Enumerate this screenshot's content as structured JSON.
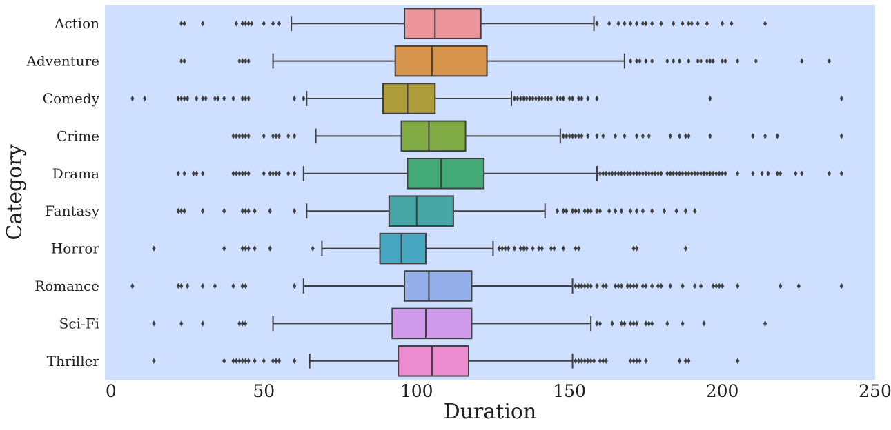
{
  "chart_data": {
    "type": "boxplot",
    "orientation": "horizontal",
    "xlabel": "Duration",
    "ylabel": "Category",
    "xlim": [
      -2,
      250
    ],
    "xticks": [
      0,
      50,
      100,
      150,
      200,
      250
    ],
    "grid": false,
    "plot_background": "#cfdfff",
    "box_edge_color": "#3f3f3f",
    "categories": [
      "Action",
      "Adventure",
      "Comedy",
      "Crime",
      "Drama",
      "Fantasy",
      "Horror",
      "Romance",
      "Sci-Fi",
      "Thriller"
    ],
    "boxes": [
      {
        "category": "Action",
        "color": "#eb949b",
        "whisker_low": 59,
        "q1": 96,
        "median": 106,
        "q3": 121,
        "whisker_high": 158,
        "outliers": [
          23,
          24,
          30,
          41,
          43,
          44,
          45,
          46,
          50,
          53,
          55,
          159,
          163,
          166,
          168,
          170,
          172,
          174,
          175,
          177,
          180,
          184,
          187,
          189,
          190,
          192,
          195,
          200,
          203,
          214
        ]
      },
      {
        "category": "Adventure",
        "color": "#d7944d",
        "whisker_low": 53,
        "q1": 93,
        "median": 105,
        "q3": 123,
        "whisker_high": 168,
        "outliers": [
          23,
          24,
          42,
          43,
          44,
          45,
          170,
          172,
          173,
          175,
          177,
          182,
          184,
          186,
          189,
          192,
          193,
          195,
          196,
          197,
          200,
          201,
          205,
          211,
          226,
          235
        ]
      },
      {
        "category": "Comedy",
        "color": "#ac9c3c",
        "whisker_low": 64,
        "q1": 89,
        "median": 97,
        "q3": 106,
        "whisker_high": 131,
        "outliers": [
          7,
          11,
          22,
          23,
          24,
          25,
          28,
          30,
          31,
          34,
          35,
          37,
          40,
          43,
          44,
          45,
          60,
          63,
          132,
          133,
          134,
          135,
          136,
          137,
          138,
          139,
          140,
          141,
          142,
          143,
          144,
          146,
          147,
          148,
          150,
          151,
          153,
          154,
          156,
          159,
          196,
          239
        ]
      },
      {
        "category": "Crime",
        "color": "#80aa44",
        "whisker_low": 67,
        "q1": 95,
        "median": 104,
        "q3": 116,
        "whisker_high": 147,
        "outliers": [
          40,
          41,
          42,
          43,
          44,
          45,
          50,
          53,
          54,
          55,
          58,
          60,
          148,
          149,
          150,
          151,
          152,
          153,
          154,
          156,
          159,
          161,
          165,
          168,
          172,
          174,
          176,
          183,
          186,
          188,
          189,
          196,
          210,
          214,
          218,
          239
        ]
      },
      {
        "category": "Drama",
        "color": "#44aa78",
        "whisker_low": 63,
        "q1": 97,
        "median": 108,
        "q3": 122,
        "whisker_high": 159,
        "outliers": [
          22,
          24,
          27,
          28,
          30,
          40,
          41,
          42,
          43,
          44,
          45,
          50,
          52,
          53,
          54,
          55,
          58,
          60,
          160,
          161,
          162,
          163,
          164,
          165,
          166,
          167,
          168,
          169,
          170,
          171,
          172,
          173,
          174,
          175,
          176,
          177,
          178,
          179,
          180,
          182,
          183,
          184,
          185,
          186,
          187,
          188,
          189,
          190,
          191,
          192,
          193,
          194,
          195,
          196,
          197,
          198,
          199,
          200,
          201,
          205,
          210,
          213,
          215,
          218,
          219,
          224,
          226,
          235,
          239
        ]
      },
      {
        "category": "Fantasy",
        "color": "#47a6a6",
        "whisker_low": 64,
        "q1": 91,
        "median": 100,
        "q3": 112,
        "whisker_high": 142,
        "outliers": [
          22,
          23,
          24,
          30,
          37,
          43,
          44,
          45,
          47,
          52,
          60,
          146,
          148,
          149,
          151,
          152,
          153,
          155,
          156,
          157,
          159,
          160,
          163,
          165,
          167,
          170,
          172,
          174,
          177,
          181,
          185,
          188,
          191
        ]
      },
      {
        "category": "Horror",
        "color": "#48a8c4",
        "whisker_low": 69,
        "q1": 88,
        "median": 95,
        "q3": 103,
        "whisker_high": 125,
        "outliers": [
          14,
          37,
          43,
          44,
          45,
          47,
          52,
          66,
          127,
          128,
          129,
          130,
          132,
          134,
          135,
          136,
          138,
          140,
          141,
          144,
          145,
          148,
          152,
          153,
          171,
          172,
          188
        ]
      },
      {
        "category": "Romance",
        "color": "#94aeea",
        "whisker_low": 63,
        "q1": 96,
        "median": 104,
        "q3": 118,
        "whisker_high": 151,
        "outliers": [
          7,
          22,
          23,
          25,
          30,
          34,
          40,
          43,
          44,
          60,
          152,
          153,
          154,
          155,
          156,
          157,
          159,
          161,
          162,
          165,
          166,
          167,
          169,
          170,
          171,
          172,
          174,
          175,
          177,
          179,
          180,
          183,
          187,
          191,
          193,
          197,
          198,
          199,
          200,
          205,
          219,
          225,
          239
        ]
      },
      {
        "category": "Sci-Fi",
        "color": "#cf9ae9",
        "whisker_low": 53,
        "q1": 92,
        "median": 103,
        "q3": 118,
        "whisker_high": 157,
        "outliers": [
          14,
          23,
          30,
          42,
          43,
          44,
          159,
          160,
          164,
          167,
          168,
          170,
          171,
          172,
          175,
          176,
          177,
          182,
          187,
          194,
          214
        ]
      },
      {
        "category": "Thriller",
        "color": "#ea8ccd",
        "whisker_low": 65,
        "q1": 94,
        "median": 105,
        "q3": 117,
        "whisker_high": 151,
        "outliers": [
          14,
          37,
          40,
          41,
          42,
          43,
          44,
          45,
          47,
          50,
          53,
          54,
          55,
          60,
          152,
          153,
          154,
          155,
          156,
          157,
          158,
          160,
          161,
          162,
          170,
          171,
          172,
          173,
          175,
          186,
          188,
          189,
          205
        ]
      }
    ]
  }
}
